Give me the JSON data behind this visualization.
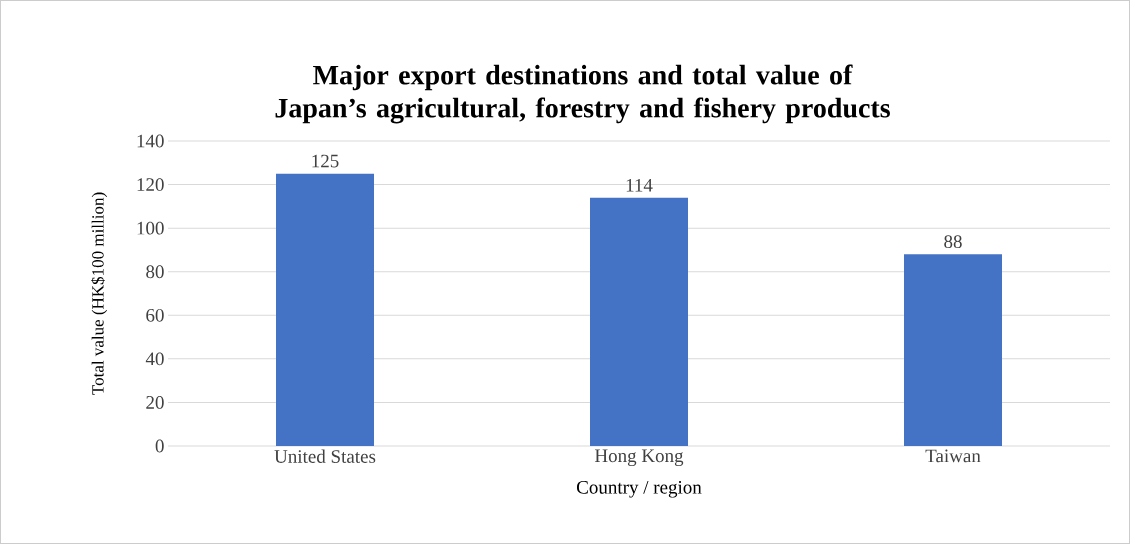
{
  "chart_data": {
    "type": "bar",
    "title": "Major export destinations and total value of Japan’s agricultural, forestry and fishery products",
    "xlabel": "Country / region",
    "ylabel": "Total value (HK$100 million)",
    "categories": [
      "United States",
      "Hong Kong",
      "Taiwan"
    ],
    "values": [
      125,
      114,
      88
    ],
    "color": "#4472c4",
    "ylim": [
      0,
      140
    ],
    "yticks": [
      0,
      20,
      40,
      60,
      80,
      100,
      120,
      140
    ],
    "grid": "y",
    "data_labels": true
  }
}
